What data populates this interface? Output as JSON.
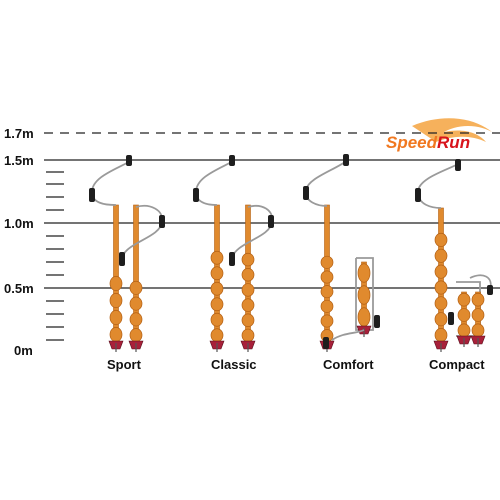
{
  "brand": {
    "logo_text": "SpeedRun",
    "logo_part1": "Speed",
    "logo_part2": "Run",
    "logo_color": "#f07820"
  },
  "scale": {
    "labels": [
      {
        "id": "1.7m",
        "text": "1.7m",
        "style": "dashed"
      },
      {
        "id": "1.5m",
        "text": "1.5m",
        "style": "solid"
      },
      {
        "id": "1.0m",
        "text": "1.0m",
        "style": "solid"
      },
      {
        "id": "0.5m",
        "text": "0.5m",
        "style": "solid"
      },
      {
        "id": "0m",
        "text": "0m",
        "style": "none"
      }
    ]
  },
  "models": [
    {
      "name": "Sport"
    },
    {
      "name": "Classic"
    },
    {
      "name": "Comfort"
    },
    {
      "name": "Compact"
    }
  ],
  "colors": {
    "auger_orange": "#e08a2e",
    "auger_dark": "#b35f12",
    "blade_red": "#a8203a",
    "handle_grey": "#9a9a9a",
    "grip_black": "#1e1e1e",
    "line": "#111111"
  }
}
